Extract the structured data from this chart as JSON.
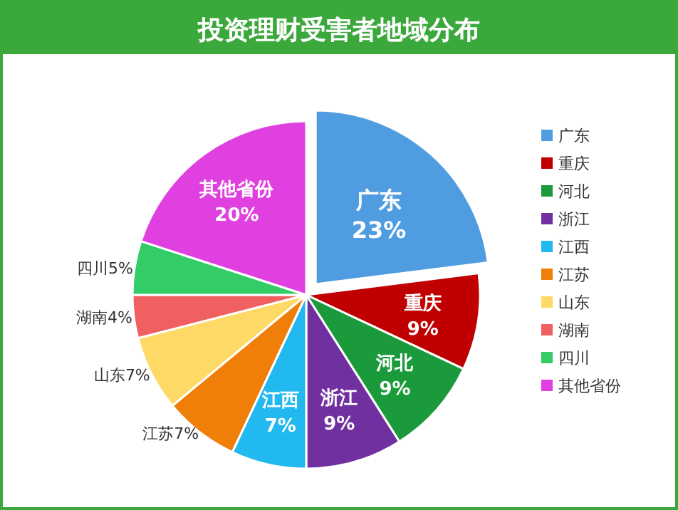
{
  "chart_data": {
    "type": "pie",
    "title": "投资理财受害者地域分布",
    "categories": [
      "广东",
      "重庆",
      "河北",
      "浙江",
      "江西",
      "江苏",
      "山东",
      "湖南",
      "四川",
      "其他省份"
    ],
    "values": [
      23,
      9,
      9,
      9,
      7,
      7,
      7,
      4,
      5,
      20
    ],
    "colors": [
      "#4f9de0",
      "#c00000",
      "#1a9a3a",
      "#7030a0",
      "#22b8f0",
      "#f07f0a",
      "#ffd966",
      "#f06060",
      "#33cc66",
      "#e040e0"
    ],
    "value_labels": [
      "23%",
      "9%",
      "9%",
      "9%",
      "7%",
      "7%",
      "7%",
      "4%",
      "5%",
      "20%"
    ],
    "legend": "right"
  }
}
